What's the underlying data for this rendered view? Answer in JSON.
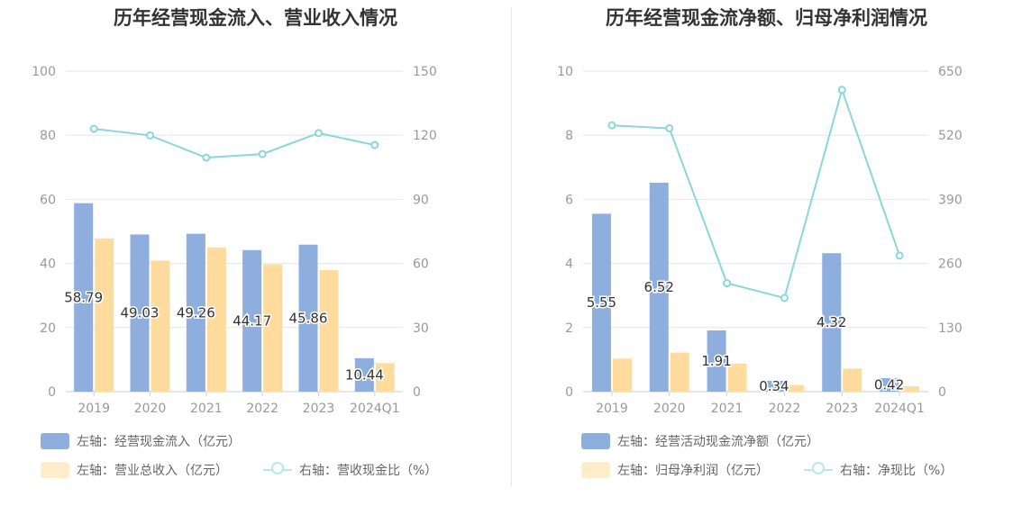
{
  "charts": [
    {
      "id": "left",
      "title": "历年经营现金流入、营业收入情况",
      "chart_data": {
        "type": "bar",
        "categories": [
          "2019",
          "2020",
          "2021",
          "2022",
          "2023",
          "2024Q1"
        ],
        "series": [
          {
            "name": "左轴：经营现金流入（亿元）",
            "axis": "left",
            "kind": "bar",
            "color": "#8eaedd",
            "values": [
              58.79,
              49.03,
              49.26,
              44.17,
              45.86,
              10.44
            ],
            "labels": [
              "58.79",
              "49.03",
              "49.26",
              "44.17",
              "45.86",
              "10.44"
            ]
          },
          {
            "name": "左轴：营业总收入（亿元）",
            "axis": "left",
            "kind": "bar",
            "color": "#ffdc9e",
            "values": [
              47.8,
              40.9,
              45.0,
              39.7,
              37.9,
              8.9
            ]
          },
          {
            "name": "右轴：营收现金比（%）",
            "axis": "right",
            "kind": "line",
            "color": "#8ad6dc",
            "values": [
              123.0,
              119.9,
              109.5,
              111.2,
              121.0,
              115.4
            ]
          }
        ],
        "left_axis": {
          "min": 0,
          "max": 100,
          "ticks": [
            "0",
            "20",
            "40",
            "60",
            "80",
            "100"
          ]
        },
        "right_axis": {
          "min": 0,
          "max": 150,
          "ticks": [
            "0",
            "30",
            "60",
            "90",
            "120",
            "150"
          ]
        },
        "grid": true,
        "legend_position": "bottom-left"
      }
    },
    {
      "id": "right",
      "title": "历年经营现金流净额、归母净利润情况",
      "chart_data": {
        "type": "bar",
        "categories": [
          "2019",
          "2020",
          "2021",
          "2022",
          "2023",
          "2024Q1"
        ],
        "series": [
          {
            "name": "左轴：经营活动现金流净额（亿元）",
            "axis": "left",
            "kind": "bar",
            "color": "#8eaedd",
            "values": [
              5.55,
              6.52,
              1.91,
              0.34,
              4.32,
              0.42
            ],
            "labels": [
              "5.55",
              "6.52",
              "1.91",
              "0.34",
              "4.32",
              "0.42"
            ]
          },
          {
            "name": "左轴：归母净利润（亿元）",
            "axis": "left",
            "kind": "bar",
            "color": "#ffdc9e",
            "values": [
              1.03,
              1.22,
              0.87,
              0.21,
              0.72,
              0.17
            ]
          },
          {
            "name": "右轴：净现比（%）",
            "axis": "right",
            "kind": "line",
            "color": "#8ad6dc",
            "values": [
              540,
              534,
              220,
              190,
              612,
              276
            ]
          }
        ],
        "left_axis": {
          "min": 0,
          "max": 10,
          "ticks": [
            "0",
            "2",
            "4",
            "6",
            "8",
            "10"
          ]
        },
        "right_axis": {
          "min": 0,
          "max": 650,
          "ticks": [
            "0",
            "130",
            "260",
            "390",
            "520",
            "650"
          ]
        },
        "grid": true,
        "legend_position": "bottom-left"
      }
    }
  ]
}
